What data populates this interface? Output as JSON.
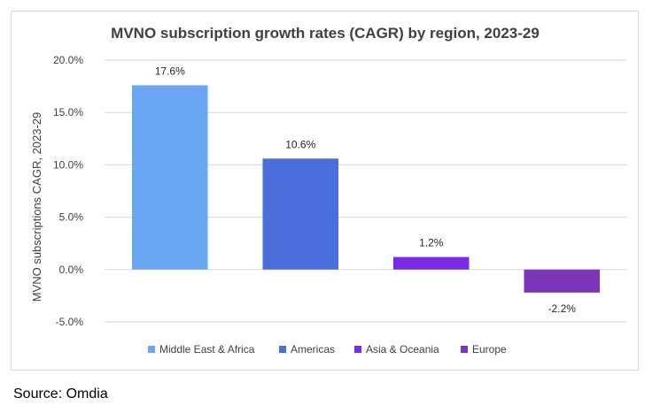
{
  "chart_data": {
    "type": "bar",
    "title": "MVNO subscription growth rates (CAGR) by region, 2023-29",
    "ylabel": "MVNO subscriptions CAGR, 2023-29",
    "xlabel": "",
    "categories": [
      "Middle East & Africa",
      "Americas",
      "Asia & Oceania",
      "Europe"
    ],
    "values": [
      17.6,
      10.6,
      1.2,
      -2.2
    ],
    "data_labels": [
      "17.6%",
      "10.6%",
      "1.2%",
      "-2.2%"
    ],
    "colors": [
      "#6aa6f4",
      "#4a6fdc",
      "#7d2ae8",
      "#7b35b8"
    ],
    "ylim": [
      -5,
      20
    ],
    "yticks": [
      20,
      15,
      10,
      5,
      0,
      -5
    ],
    "ytick_labels": [
      "20.0%",
      "15.0%",
      "10.0%",
      "5.0%",
      "0.0%",
      "-5.0%"
    ],
    "grid": true,
    "legend": "bottom",
    "legend_entries": [
      "Middle East & Africa",
      "Americas",
      "Asia & Oceania",
      "Europe"
    ]
  },
  "source": "Source: Omdia"
}
